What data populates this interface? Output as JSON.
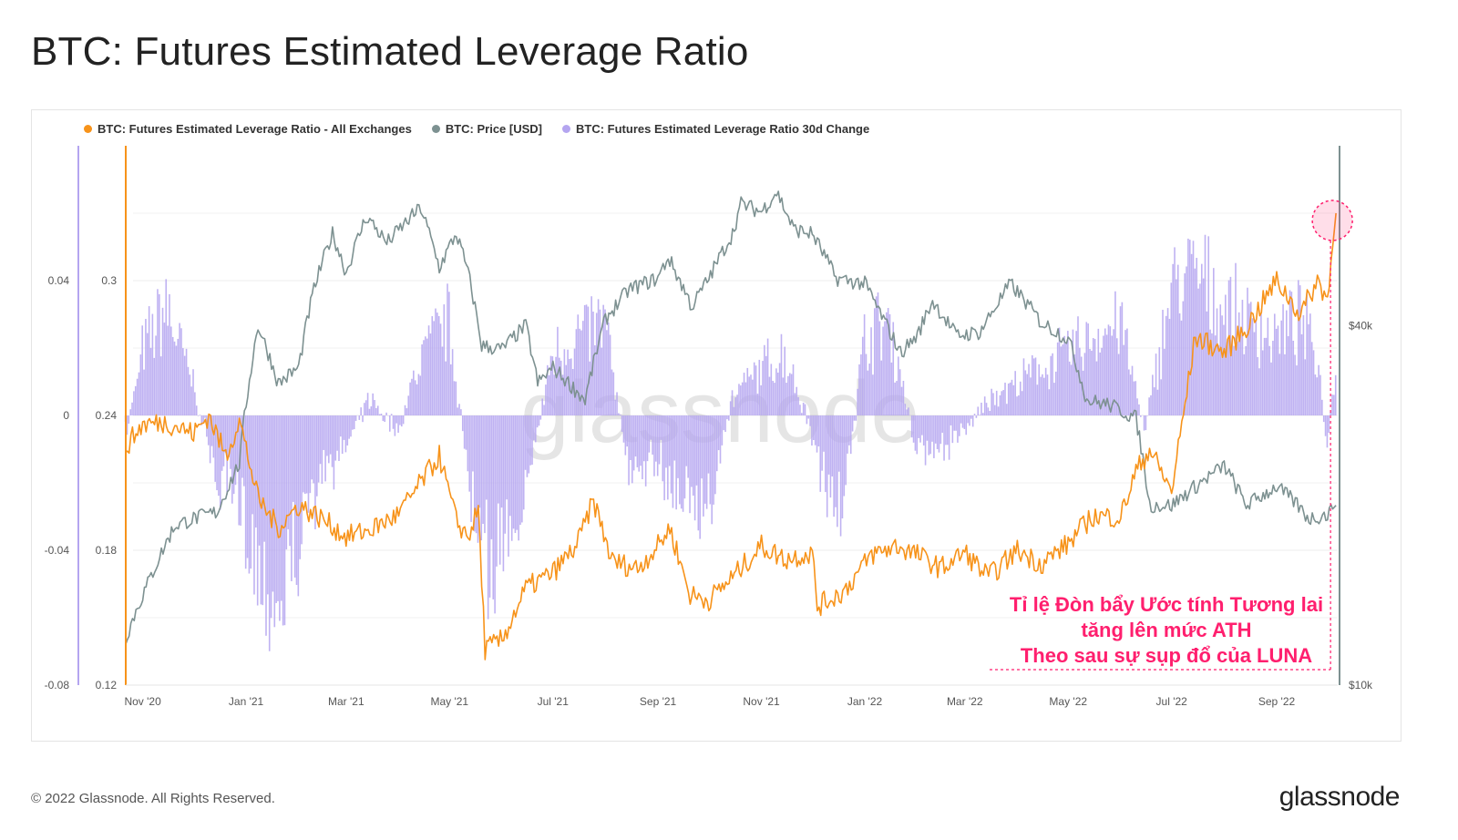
{
  "page": {
    "title": "BTC: Futures Estimated Leverage Ratio",
    "footer": "© 2022 Glassnode. All Rights Reserved.",
    "logo": "glassnode",
    "watermark": "glassnode"
  },
  "annotation": {
    "line1": "Tỉ lệ Đòn bẩy Ước tính Tương lai",
    "line2": "tăng lên mức ATH",
    "line3": "Theo sau sự sụp đổ của  LUNA",
    "color": "#ff1f6e"
  },
  "chart_data": {
    "type": "line",
    "legend_position": "top-left",
    "grid": true,
    "series": [
      {
        "name": "BTC: Futures Estimated Leverage Ratio - All Exchanges",
        "color": "#f7931a",
        "axis": "left-inner",
        "kind": "line",
        "x": [
          "2020-10-22",
          "2020-11-01",
          "2020-11-15",
          "2020-12-01",
          "2020-12-10",
          "2020-12-20",
          "2020-12-28",
          "2021-01-08",
          "2021-01-20",
          "2021-02-01",
          "2021-02-15",
          "2021-03-01",
          "2021-03-15",
          "2021-04-01",
          "2021-04-14",
          "2021-04-25",
          "2021-05-05",
          "2021-05-12",
          "2021-05-18",
          "2021-05-22",
          "2021-06-01",
          "2021-06-15",
          "2021-07-01",
          "2021-07-15",
          "2021-07-25",
          "2021-08-05",
          "2021-08-20",
          "2021-09-01",
          "2021-09-08",
          "2021-09-20",
          "2021-10-01",
          "2021-10-15",
          "2021-11-01",
          "2021-11-15",
          "2021-12-01",
          "2021-12-04",
          "2021-12-20",
          "2022-01-05",
          "2022-01-20",
          "2022-02-01",
          "2022-02-15",
          "2022-03-01",
          "2022-03-15",
          "2022-04-01",
          "2022-04-15",
          "2022-05-01",
          "2022-05-15",
          "2022-06-01",
          "2022-06-10",
          "2022-06-18",
          "2022-07-01",
          "2022-07-15",
          "2022-08-01",
          "2022-08-15",
          "2022-09-01",
          "2022-09-15",
          "2022-09-25",
          "2022-10-01",
          "2022-10-06"
        ],
        "values": [
          0.226,
          0.236,
          0.237,
          0.232,
          0.24,
          0.222,
          0.238,
          0.203,
          0.19,
          0.2,
          0.194,
          0.186,
          0.189,
          0.196,
          0.21,
          0.222,
          0.193,
          0.186,
          0.198,
          0.136,
          0.14,
          0.163,
          0.17,
          0.182,
          0.202,
          0.175,
          0.172,
          0.182,
          0.19,
          0.16,
          0.158,
          0.168,
          0.182,
          0.176,
          0.179,
          0.155,
          0.162,
          0.178,
          0.182,
          0.178,
          0.172,
          0.179,
          0.168,
          0.18,
          0.174,
          0.183,
          0.195,
          0.195,
          0.215,
          0.225,
          0.206,
          0.275,
          0.268,
          0.28,
          0.3,
          0.285,
          0.3,
          0.292,
          0.33
        ]
      },
      {
        "name": "BTC: Price [USD]",
        "color": "#7d9191",
        "axis": "right",
        "kind": "line",
        "x": [
          "2020-10-22",
          "2020-11-05",
          "2020-11-20",
          "2020-12-01",
          "2020-12-15",
          "2020-12-28",
          "2021-01-08",
          "2021-01-20",
          "2021-02-01",
          "2021-02-10",
          "2021-02-21",
          "2021-03-01",
          "2021-03-13",
          "2021-03-25",
          "2021-04-14",
          "2021-04-25",
          "2021-05-05",
          "2021-05-12",
          "2021-05-20",
          "2021-06-01",
          "2021-06-15",
          "2021-06-22",
          "2021-07-01",
          "2021-07-20",
          "2021-08-01",
          "2021-08-15",
          "2021-09-01",
          "2021-09-07",
          "2021-09-21",
          "2021-10-01",
          "2021-10-15",
          "2021-10-20",
          "2021-11-01",
          "2021-11-10",
          "2021-11-20",
          "2021-12-01",
          "2021-12-15",
          "2022-01-01",
          "2022-01-10",
          "2022-01-22",
          "2022-02-01",
          "2022-02-10",
          "2022-02-24",
          "2022-03-10",
          "2022-03-28",
          "2022-04-15",
          "2022-05-01",
          "2022-05-12",
          "2022-05-25",
          "2022-06-10",
          "2022-06-18",
          "2022-07-01",
          "2022-07-15",
          "2022-08-01",
          "2022-08-14",
          "2022-09-01",
          "2022-09-12",
          "2022-09-20",
          "2022-10-01",
          "2022-10-06"
        ],
        "values": [
          12000,
          15000,
          18500,
          19000,
          19500,
          23500,
          40000,
          32000,
          34000,
          46000,
          57000,
          49000,
          61000,
          55000,
          63000,
          50000,
          57000,
          49000,
          37000,
          36500,
          40000,
          32000,
          34000,
          30000,
          41000,
          46000,
          48000,
          52000,
          43000,
          48000,
          57000,
          64000,
          62000,
          67000,
          58000,
          57000,
          48000,
          47000,
          42000,
          36000,
          38500,
          44000,
          38500,
          39000,
          47000,
          40500,
          38000,
          30000,
          29500,
          28000,
          20000,
          20000,
          21500,
          23300,
          20000,
          21500,
          20200,
          19000,
          19300,
          20000
        ]
      },
      {
        "name": "BTC: Futures Estimated Leverage Ratio 30d Change",
        "color": "#b4a5f0",
        "axis": "left-outer",
        "kind": "bar",
        "x": [
          "2020-10-22",
          "2020-11-01",
          "2020-11-15",
          "2020-12-01",
          "2020-12-15",
          "2021-01-01",
          "2021-01-10",
          "2021-01-20",
          "2021-02-01",
          "2021-02-15",
          "2021-03-01",
          "2021-03-15",
          "2021-04-01",
          "2021-04-15",
          "2021-05-01",
          "2021-05-15",
          "2021-05-22",
          "2021-06-01",
          "2021-06-15",
          "2021-07-01",
          "2021-07-15",
          "2021-08-01",
          "2021-08-15",
          "2021-09-01",
          "2021-09-15",
          "2021-10-01",
          "2021-10-15",
          "2021-11-01",
          "2021-11-15",
          "2021-12-01",
          "2021-12-10",
          "2021-12-20",
          "2022-01-01",
          "2022-01-15",
          "2022-02-01",
          "2022-02-15",
          "2022-03-01",
          "2022-03-15",
          "2022-04-01",
          "2022-04-15",
          "2022-05-01",
          "2022-05-15",
          "2022-06-01",
          "2022-06-15",
          "2022-07-01",
          "2022-07-15",
          "2022-08-01",
          "2022-08-15",
          "2022-09-01",
          "2022-09-15",
          "2022-09-25",
          "2022-10-01",
          "2022-10-06"
        ],
        "values": [
          -0.008,
          0.02,
          0.035,
          0.01,
          -0.02,
          -0.035,
          -0.05,
          -0.06,
          -0.04,
          -0.02,
          -0.01,
          0.005,
          -0.005,
          0.02,
          0.03,
          -0.03,
          -0.05,
          -0.04,
          -0.025,
          0.02,
          0.025,
          0.03,
          -0.02,
          -0.015,
          -0.025,
          -0.03,
          0.005,
          0.015,
          0.02,
          -0.005,
          -0.025,
          -0.03,
          0.025,
          0.03,
          -0.01,
          -0.01,
          -0.005,
          0.005,
          0.01,
          0.015,
          0.02,
          0.025,
          0.03,
          -0.005,
          0.04,
          0.045,
          0.035,
          0.03,
          0.025,
          0.03,
          0.02,
          -0.01,
          0.015
        ]
      }
    ],
    "x_axis": {
      "tick_labels": [
        "Nov '20",
        "Jan '21",
        "Mar '21",
        "May '21",
        "Jul '21",
        "Sep '21",
        "Nov '21",
        "Jan '22",
        "Mar '22",
        "May '22",
        "Jul '22",
        "Sep '22"
      ],
      "range": [
        "2020-10-22",
        "2022-10-07"
      ]
    },
    "y_left_outer": {
      "tick_labels": [
        "0.04",
        "0",
        "-0.04",
        "-0.08"
      ],
      "range": [
        -0.08,
        0.08
      ]
    },
    "y_left_inner": {
      "tick_labels": [
        "0.3",
        "0.24",
        "0.18",
        "0.12"
      ],
      "range": [
        0.12,
        0.36
      ]
    },
    "y_right": {
      "tick_labels": [
        "$40k",
        "$10k"
      ],
      "scale": "log",
      "range": [
        10000,
        80000
      ]
    }
  }
}
